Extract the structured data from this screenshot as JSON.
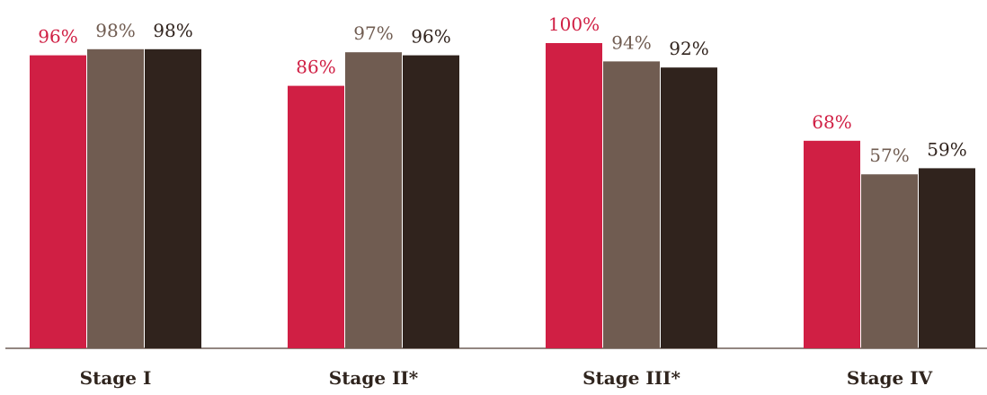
{
  "chart_data": {
    "type": "bar",
    "categories": [
      "Stage I",
      "Stage II*",
      "Stage III*",
      "Stage IV"
    ],
    "series": [
      {
        "values": [
          96,
          86,
          100,
          68
        ],
        "labels": [
          "96%",
          "86%",
          "100%",
          "68%"
        ],
        "color": "#d01f44"
      },
      {
        "values": [
          98,
          97,
          94,
          57
        ],
        "labels": [
          "98%",
          "97%",
          "94%",
          "57%"
        ],
        "color": "#705c51"
      },
      {
        "values": [
          98,
          96,
          92,
          59
        ],
        "labels": [
          "98%",
          "96%",
          "92%",
          "59%"
        ],
        "color": "#30231d"
      }
    ],
    "ylim": [
      0,
      100
    ],
    "grid": false,
    "legend": "none"
  }
}
